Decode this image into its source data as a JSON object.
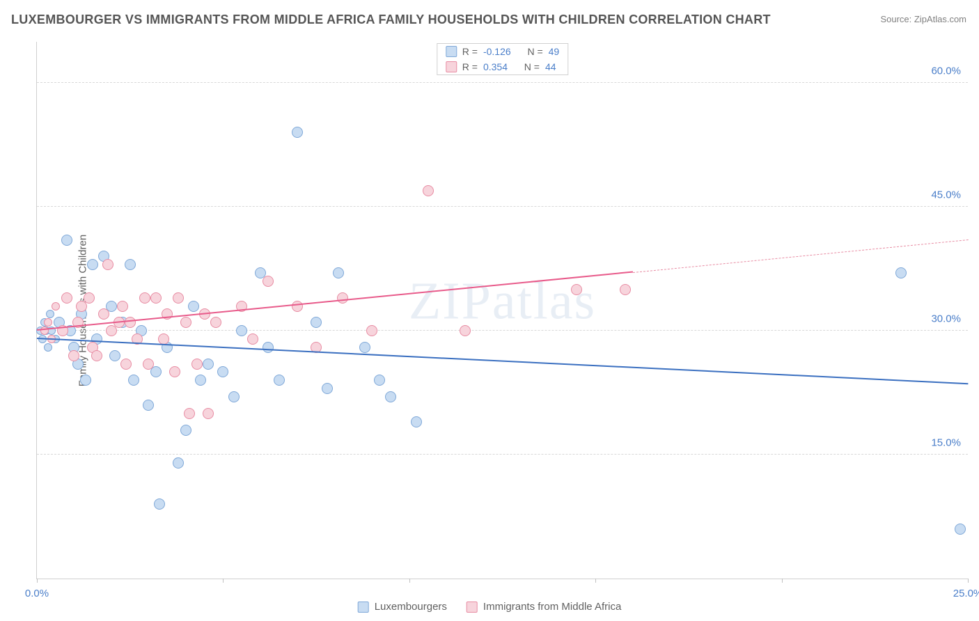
{
  "title": "LUXEMBOURGER VS IMMIGRANTS FROM MIDDLE AFRICA FAMILY HOUSEHOLDS WITH CHILDREN CORRELATION CHART",
  "source": "Source: ZipAtlas.com",
  "watermark": "ZIPatlas",
  "y_axis_label": "Family Households with Children",
  "chart": {
    "type": "scatter",
    "xlim": [
      0,
      25
    ],
    "ylim": [
      0,
      65
    ],
    "y_ticks": [
      15,
      30,
      45,
      60
    ],
    "x_ticks": [
      0,
      5,
      10,
      15,
      20,
      25
    ],
    "x_tick_labels": {
      "0": "0.0%",
      "25": "25.0%"
    },
    "grid_color": "#d8d8d8",
    "axis_color": "#d0d0d0",
    "background_color": "#ffffff",
    "tick_label_color": "#4a7ec9",
    "axis_label_color": "#606060",
    "marker_radius": 8,
    "marker_radius_small": 6,
    "trend_line_width": 2
  },
  "series": [
    {
      "name": "Luxembourgers",
      "color_fill": "#c8dcf2",
      "color_stroke": "#7fa8d8",
      "R": "-0.126",
      "N": "49",
      "trend": {
        "x1": 0,
        "y1": 29.0,
        "x2": 25,
        "y2": 23.5,
        "solid_to_x": 25
      },
      "points": [
        [
          0.1,
          30
        ],
        [
          0.15,
          29
        ],
        [
          0.2,
          31
        ],
        [
          0.25,
          30
        ],
        [
          0.3,
          28
        ],
        [
          0.35,
          32
        ],
        [
          0.4,
          30
        ],
        [
          0.5,
          29
        ],
        [
          0.6,
          31
        ],
        [
          0.8,
          41
        ],
        [
          0.9,
          30
        ],
        [
          1.0,
          28
        ],
        [
          1.1,
          26
        ],
        [
          1.2,
          32
        ],
        [
          1.3,
          24
        ],
        [
          1.5,
          38
        ],
        [
          1.6,
          29
        ],
        [
          1.8,
          39
        ],
        [
          2.0,
          33
        ],
        [
          2.1,
          27
        ],
        [
          2.3,
          31
        ],
        [
          2.5,
          38
        ],
        [
          2.6,
          24
        ],
        [
          2.8,
          30
        ],
        [
          3.0,
          21
        ],
        [
          3.2,
          25
        ],
        [
          3.3,
          9
        ],
        [
          3.5,
          28
        ],
        [
          3.8,
          14
        ],
        [
          4.0,
          18
        ],
        [
          4.2,
          33
        ],
        [
          4.4,
          24
        ],
        [
          4.6,
          26
        ],
        [
          5.0,
          25
        ],
        [
          5.3,
          22
        ],
        [
          5.5,
          30
        ],
        [
          6.0,
          37
        ],
        [
          6.2,
          28
        ],
        [
          6.5,
          24
        ],
        [
          7.0,
          54
        ],
        [
          7.5,
          31
        ],
        [
          7.8,
          23
        ],
        [
          8.1,
          37
        ],
        [
          8.8,
          28
        ],
        [
          9.2,
          24
        ],
        [
          9.5,
          22
        ],
        [
          10.2,
          19
        ],
        [
          23.2,
          37
        ],
        [
          24.8,
          6
        ]
      ]
    },
    {
      "name": "Immigrants from Middle Africa",
      "color_fill": "#f7d4dc",
      "color_stroke": "#e88ca3",
      "R": "0.354",
      "N": "44",
      "trend": {
        "x1": 0,
        "y1": 30.0,
        "x2": 25,
        "y2": 41.0,
        "solid_to_x": 16
      },
      "points": [
        [
          0.2,
          30
        ],
        [
          0.3,
          31
        ],
        [
          0.4,
          29
        ],
        [
          0.5,
          33
        ],
        [
          0.7,
          30
        ],
        [
          0.8,
          34
        ],
        [
          1.0,
          27
        ],
        [
          1.1,
          31
        ],
        [
          1.2,
          33
        ],
        [
          1.4,
          34
        ],
        [
          1.5,
          28
        ],
        [
          1.6,
          27
        ],
        [
          1.8,
          32
        ],
        [
          1.9,
          38
        ],
        [
          2.0,
          30
        ],
        [
          2.2,
          31
        ],
        [
          2.3,
          33
        ],
        [
          2.4,
          26
        ],
        [
          2.5,
          31
        ],
        [
          2.7,
          29
        ],
        [
          2.9,
          34
        ],
        [
          3.0,
          26
        ],
        [
          3.2,
          34
        ],
        [
          3.4,
          29
        ],
        [
          3.5,
          32
        ],
        [
          3.7,
          25
        ],
        [
          3.8,
          34
        ],
        [
          4.0,
          31
        ],
        [
          4.1,
          20
        ],
        [
          4.3,
          26
        ],
        [
          4.5,
          32
        ],
        [
          4.6,
          20
        ],
        [
          4.8,
          31
        ],
        [
          5.5,
          33
        ],
        [
          5.8,
          29
        ],
        [
          6.2,
          36
        ],
        [
          7.0,
          33
        ],
        [
          7.5,
          28
        ],
        [
          8.2,
          34
        ],
        [
          9.0,
          30
        ],
        [
          10.5,
          47
        ],
        [
          11.5,
          30
        ],
        [
          14.5,
          35
        ],
        [
          15.8,
          35
        ]
      ]
    }
  ],
  "legend_top": {
    "R_label": "R =",
    "N_label": "N ="
  },
  "legend_bottom": [
    {
      "label": "Luxembourgers",
      "fill": "#c8dcf2",
      "stroke": "#7fa8d8"
    },
    {
      "label": "Immigrants from Middle Africa",
      "fill": "#f7d4dc",
      "stroke": "#e88ca3"
    }
  ]
}
